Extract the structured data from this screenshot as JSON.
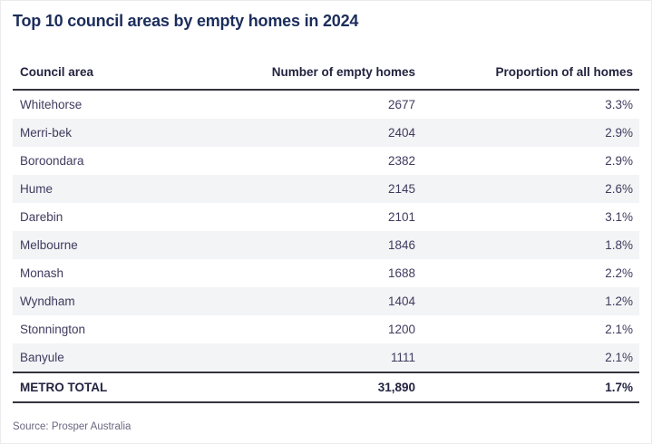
{
  "page": {
    "title": "Top 10 council areas by empty homes in 2024",
    "source": "Source: Prosper Australia"
  },
  "table": {
    "headers": {
      "council": "Council area",
      "count": "Number of empty homes",
      "proportion": "Proportion of all homes"
    },
    "rows": [
      {
        "council": "Whitehorse",
        "count": "2677",
        "proportion": "3.3%"
      },
      {
        "council": "Merri-bek",
        "count": "2404",
        "proportion": "2.9%"
      },
      {
        "council": "Boroondara",
        "count": "2382",
        "proportion": "2.9%"
      },
      {
        "council": "Hume",
        "count": "2145",
        "proportion": "2.6%"
      },
      {
        "council": "Darebin",
        "count": "2101",
        "proportion": "3.1%"
      },
      {
        "council": "Melbourne",
        "count": "1846",
        "proportion": "1.8%"
      },
      {
        "council": "Monash",
        "count": "1688",
        "proportion": "2.2%"
      },
      {
        "council": "Wyndham",
        "count": "1404",
        "proportion": "1.2%"
      },
      {
        "council": "Stonnington",
        "count": "1200",
        "proportion": "2.1%"
      },
      {
        "council": "Banyule",
        "count": "1111",
        "proportion": "2.1%"
      }
    ],
    "total": {
      "council": "METRO TOTAL",
      "count": "31,890",
      "proportion": "1.7%"
    }
  },
  "colors": {
    "title_text": "#1c2d5c",
    "header_text": "#232340",
    "body_text": "#413a5e",
    "stripe": "#f3f4f6",
    "rule": "#34343f",
    "source_text": "#6b6780",
    "background": "#ffffff"
  },
  "chart_data": {
    "type": "table",
    "title": "Top 10 council areas by empty homes in 2024",
    "columns": [
      "Council area",
      "Number of empty homes",
      "Proportion of all homes"
    ],
    "categories": [
      "Whitehorse",
      "Merri-bek",
      "Boroondara",
      "Hume",
      "Darebin",
      "Melbourne",
      "Monash",
      "Wyndham",
      "Stonnington",
      "Banyule"
    ],
    "series": [
      {
        "name": "Number of empty homes",
        "values": [
          2677,
          2404,
          2382,
          2145,
          2101,
          1846,
          1688,
          1404,
          1200,
          1111
        ]
      },
      {
        "name": "Proportion of all homes (%)",
        "values": [
          3.3,
          2.9,
          2.9,
          2.6,
          3.1,
          1.8,
          2.2,
          1.2,
          2.1,
          2.1
        ]
      }
    ],
    "total": {
      "label": "METRO TOTAL",
      "number_of_empty_homes": 31890,
      "proportion_of_all_homes_pct": 1.7
    },
    "source": "Source: Prosper Australia"
  }
}
